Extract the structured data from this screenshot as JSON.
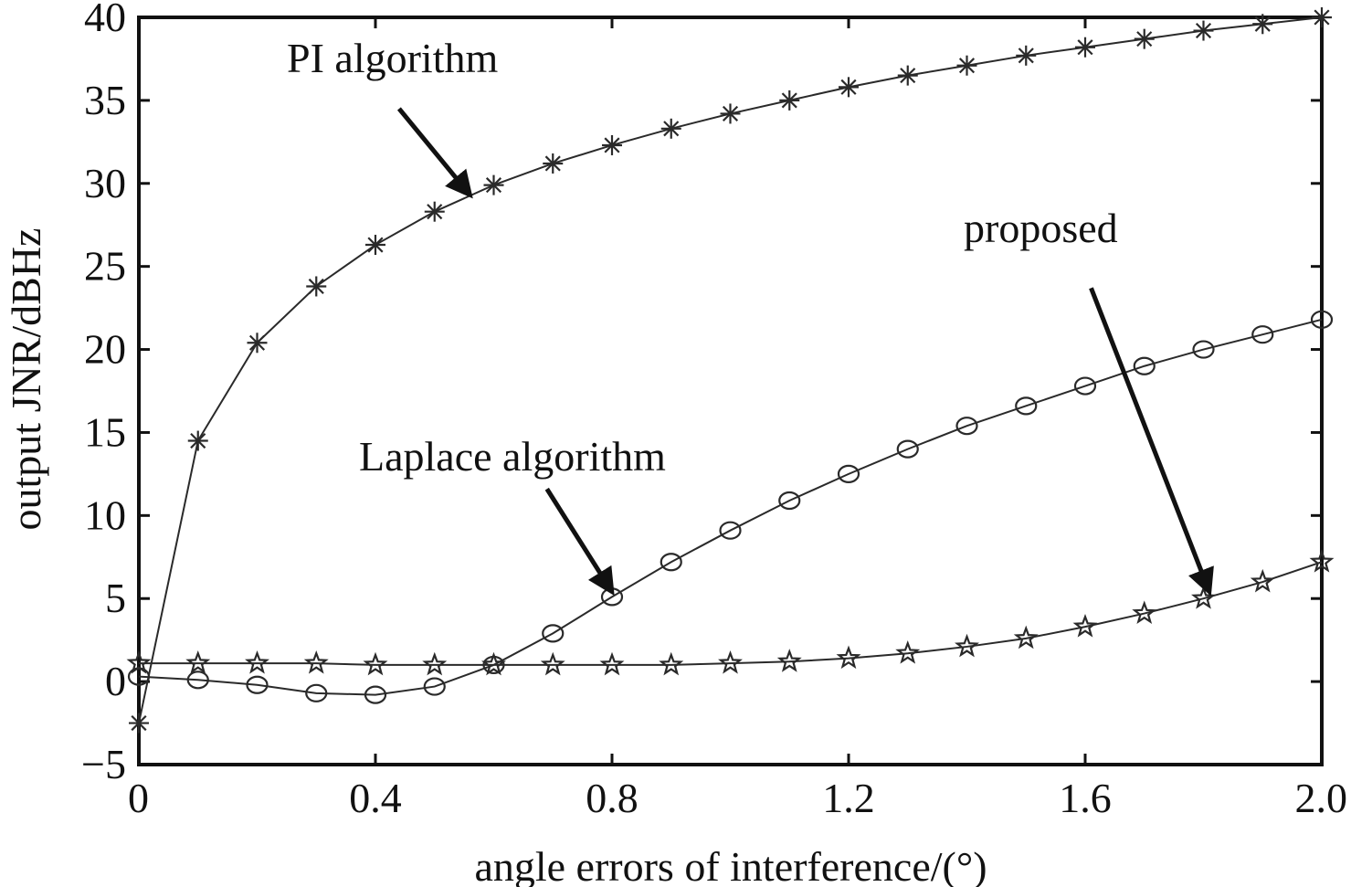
{
  "chart_data": {
    "type": "line",
    "title": "",
    "xlabel": "angle errors of interference/(°)",
    "ylabel": "output JNR/dBHz",
    "xlim": [
      0,
      2.0
    ],
    "ylim": [
      -5,
      40
    ],
    "grid": false,
    "x_ticks": [
      0,
      0.4,
      0.8,
      1.2,
      1.6,
      2.0
    ],
    "x_tick_labels": [
      "0",
      "0.4",
      "0.8",
      "1.2",
      "1.6",
      "2.0"
    ],
    "y_ticks": [
      -5,
      0,
      5,
      10,
      15,
      20,
      25,
      30,
      35,
      40
    ],
    "y_tick_labels": [
      "−5",
      "0",
      "5",
      "10",
      "15",
      "20",
      "25",
      "30",
      "35",
      "40"
    ],
    "x": [
      0,
      0.1,
      0.2,
      0.3,
      0.4,
      0.5,
      0.6,
      0.7,
      0.8,
      0.9,
      1.0,
      1.1,
      1.2,
      1.3,
      1.4,
      1.5,
      1.6,
      1.7,
      1.8,
      1.9,
      2.0
    ],
    "series": [
      {
        "marker": "asterisk",
        "values": [
          -2.5,
          14.5,
          20.4,
          23.8,
          26.3,
          28.3,
          29.9,
          31.2,
          32.3,
          33.3,
          34.2,
          35.0,
          35.8,
          36.5,
          37.1,
          37.7,
          38.2,
          38.7,
          39.2,
          39.6,
          40.0
        ]
      },
      {
        "marker": "circle",
        "values": [
          0.3,
          0.1,
          -0.2,
          -0.7,
          -0.8,
          -0.3,
          1.0,
          2.9,
          5.1,
          7.2,
          9.1,
          10.9,
          12.5,
          14.0,
          15.4,
          16.6,
          17.8,
          19.0,
          20.0,
          20.9,
          21.8
        ]
      },
      {
        "marker": "star",
        "values": [
          1.1,
          1.1,
          1.1,
          1.1,
          1.0,
          1.0,
          1.0,
          1.0,
          1.0,
          1.0,
          1.1,
          1.2,
          1.4,
          1.7,
          2.1,
          2.6,
          3.3,
          4.1,
          5.0,
          6.0,
          7.2
        ]
      }
    ],
    "annotations": [
      {
        "text": "PI algorithm",
        "arrow_tail": [
          0.44,
          34.5
        ],
        "arrow_head": [
          0.56,
          29.3
        ]
      },
      {
        "text": "Laplace algorithm",
        "arrow_tail": [
          0.69,
          11.6
        ],
        "arrow_head": [
          0.8,
          5.4
        ]
      },
      {
        "text": "proposed",
        "arrow_tail": [
          1.61,
          23.7
        ],
        "arrow_head": [
          1.81,
          5.4
        ]
      }
    ]
  }
}
